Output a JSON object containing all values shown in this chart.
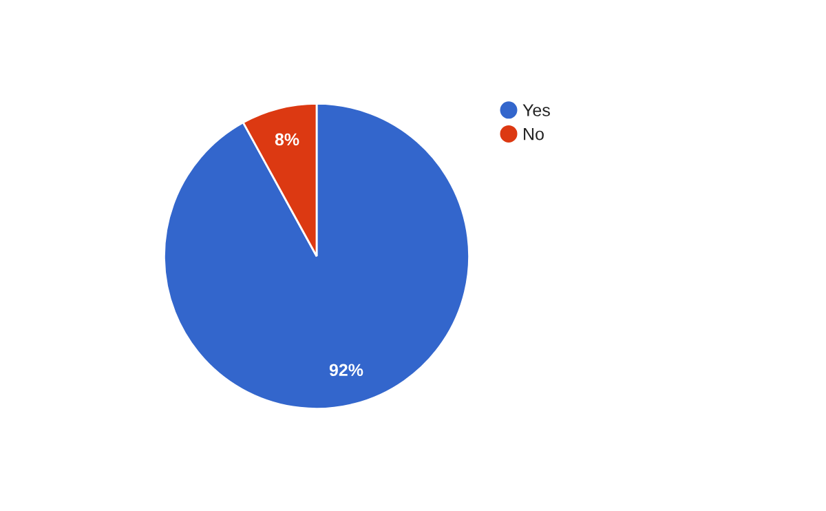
{
  "chart_data": {
    "type": "pie",
    "categories": [
      "Yes",
      "No"
    ],
    "values": [
      92,
      8
    ],
    "colors": [
      "#3366cc",
      "#dc3912"
    ],
    "value_labels": [
      "92%",
      "8%"
    ],
    "legend": "top right"
  }
}
